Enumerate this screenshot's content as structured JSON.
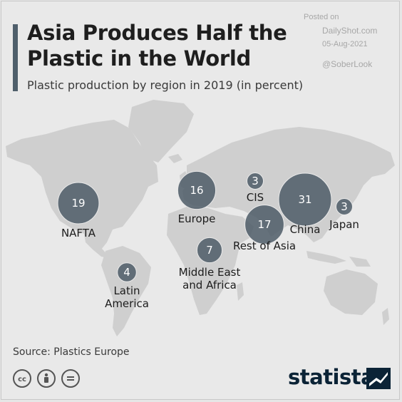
{
  "header": {
    "title": "Asia Produces Half the Plastic in the World",
    "subtitle": "Plastic production by region in 2019 (in percent)"
  },
  "watermark": {
    "posted_on": "Posted on",
    "site": "DailyShot.com",
    "date": "05-Aug-2021",
    "handle": "@SoberLook"
  },
  "map": {
    "regions": [
      {
        "name": "NAFTA",
        "value": 19
      },
      {
        "name": "Latin America",
        "value": 4
      },
      {
        "name": "Europe",
        "value": 16
      },
      {
        "name": "CIS",
        "value": 3
      },
      {
        "name": "Middle East and Africa",
        "value": 7
      },
      {
        "name": "Rest of Asia",
        "value": 17
      },
      {
        "name": "China",
        "value": 31
      },
      {
        "name": "Japan",
        "value": 3
      }
    ],
    "colors": {
      "bubble": "#4e5c67",
      "land": "#cfcfcf",
      "background": "#e9e9e9"
    }
  },
  "footer": {
    "source": "Source: Plastics Europe",
    "license_icons": [
      "cc-icon",
      "attribution-icon",
      "no-derivatives-icon"
    ],
    "brand": "statista"
  }
}
